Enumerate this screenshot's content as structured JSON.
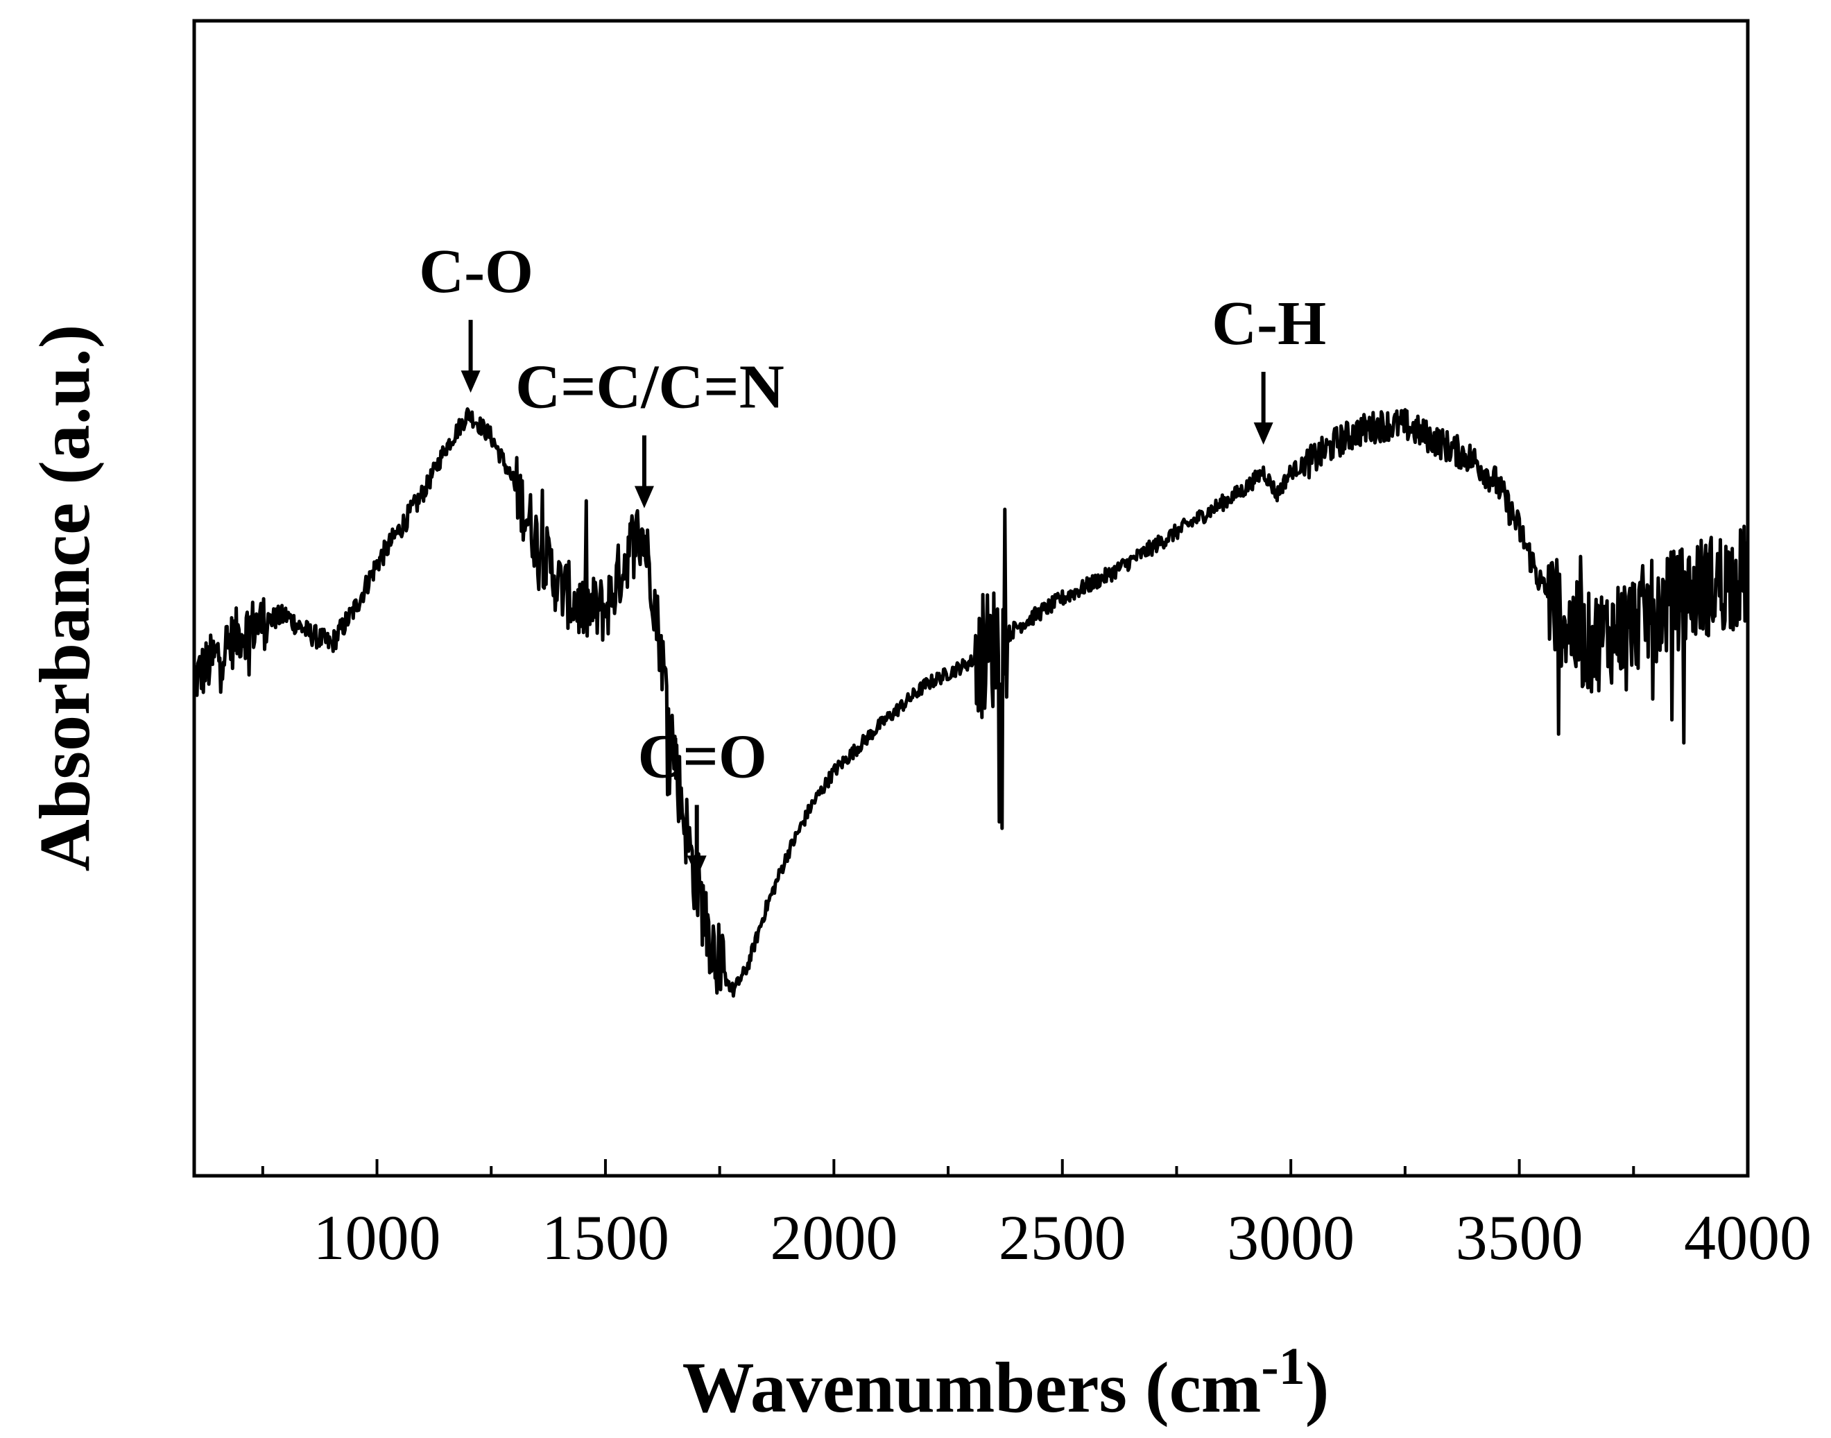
{
  "chart_data": {
    "type": "line",
    "title": "",
    "xlabel": "Wavenumbers",
    "xlabel_unit_base": "cm",
    "xlabel_unit_exp": "-1",
    "xlabel_close": ")",
    "ylabel": "Absorbance (a.u.)",
    "xlim": [
      600,
      4000
    ],
    "ylim": [
      0,
      100
    ],
    "x_ticks": [
      1000,
      1500,
      2000,
      2500,
      3000,
      3500,
      4000
    ],
    "x_tick_labels": [
      "1000",
      "1500",
      "2000",
      "2500",
      "3000",
      "3500",
      "4000"
    ],
    "y_ticks_shown": false,
    "grid": false,
    "line_color": "#000000",
    "series": [
      {
        "name": "Absorbance",
        "x": [
          600,
          650,
          700,
          750,
          800,
          850,
          900,
          950,
          1000,
          1050,
          1100,
          1150,
          1200,
          1250,
          1300,
          1350,
          1400,
          1450,
          1500,
          1530,
          1560,
          1580,
          1600,
          1630,
          1660,
          1690,
          1720,
          1750,
          1780,
          1810,
          1850,
          1900,
          1950,
          2000,
          2100,
          2200,
          2300,
          2340,
          2400,
          2500,
          2600,
          2700,
          2800,
          2900,
          2940,
          2970,
          3000,
          3050,
          3100,
          3150,
          3200,
          3250,
          3300,
          3350,
          3400,
          3450,
          3500,
          3550,
          3600,
          3650,
          3700,
          3750,
          3800,
          3850,
          3900,
          3950,
          4000
        ],
        "values": [
          43,
          45,
          47,
          48,
          48.5,
          47,
          46,
          49,
          53,
          56,
          59,
          63,
          66,
          64,
          60,
          55,
          51,
          49,
          49,
          52,
          55,
          56,
          52,
          43,
          34,
          27,
          22,
          18,
          16,
          18,
          23,
          28,
          32,
          35,
          39,
          42.5,
          44.5,
          45.5,
          47.5,
          50,
          52,
          54.5,
          57,
          59.5,
          61,
          59,
          61,
          62,
          63.5,
          64.5,
          65,
          65,
          64,
          63,
          62,
          60,
          56,
          51,
          48,
          46,
          47,
          48,
          49,
          50,
          51,
          51.5,
          52
        ]
      }
    ],
    "annotations": [
      {
        "label": "C-O",
        "x": 1205,
        "y_tip": 66
      },
      {
        "label": "C=C/C=N",
        "x": 1585,
        "y_tip": 56
      },
      {
        "label": "C=O",
        "x": 1700,
        "y_tip": 24
      },
      {
        "label": "C-H",
        "x": 2940,
        "y_tip": 61.5
      }
    ],
    "noise": [
      {
        "from": 600,
        "to": 760,
        "amp": 5
      },
      {
        "from": 760,
        "to": 1100,
        "amp": 2
      },
      {
        "from": 1100,
        "to": 1300,
        "amp": 1.6
      },
      {
        "from": 1300,
        "to": 1640,
        "amp": 6
      },
      {
        "from": 1640,
        "to": 1760,
        "amp": 7
      },
      {
        "from": 1760,
        "to": 2310,
        "amp": 1.2
      },
      {
        "from": 2310,
        "to": 2380,
        "amp": 11
      },
      {
        "from": 2380,
        "to": 3030,
        "amp": 1.4
      },
      {
        "from": 3030,
        "to": 3560,
        "amp": 2.8
      },
      {
        "from": 3560,
        "to": 4000,
        "amp": 9
      }
    ]
  }
}
